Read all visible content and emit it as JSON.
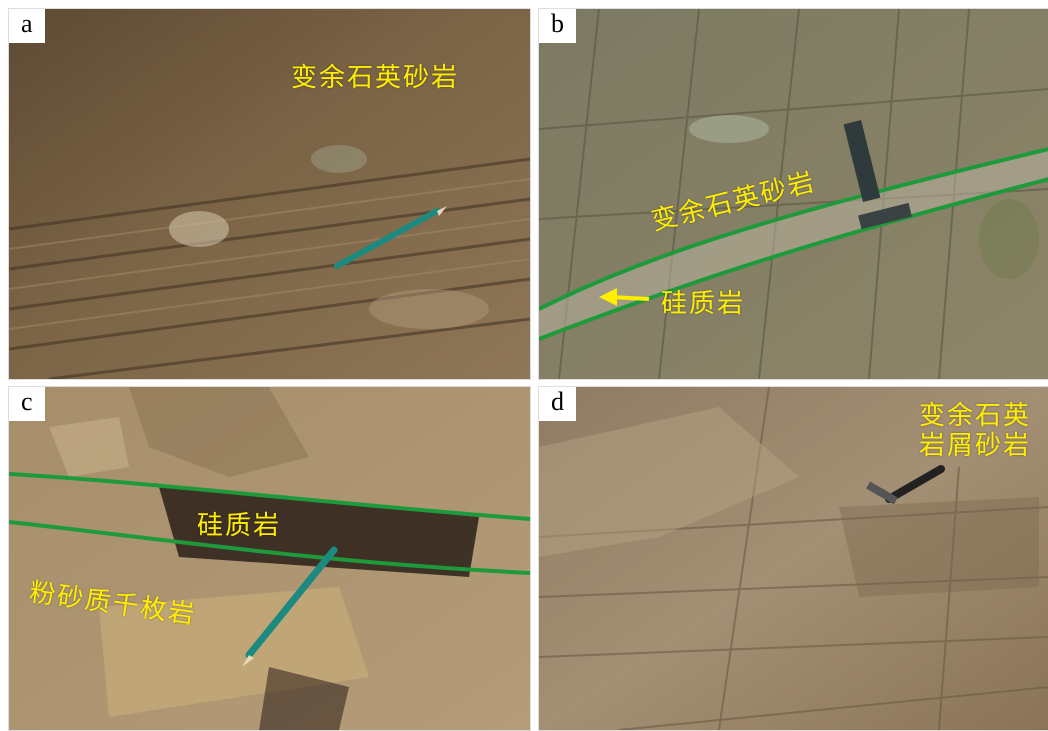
{
  "panels": [
    {
      "letter": "a",
      "labels": [
        "变余石英砂岩"
      ]
    },
    {
      "letter": "b",
      "labels": [
        "变余石英砂岩",
        "硅质岩"
      ]
    },
    {
      "letter": "c",
      "labels": [
        "硅质岩",
        "粉砂质千枚岩"
      ]
    },
    {
      "letter": "d",
      "labels": [
        "变余石英",
        "岩屑砂岩"
      ]
    }
  ],
  "colors": {
    "label": "#ffee00",
    "boundary_line": "#1e9a3c",
    "arrow": "#ffee00"
  },
  "icons": [
    "pencil-icon",
    "geologic-hammer-icon",
    "arrow-left-icon"
  ]
}
